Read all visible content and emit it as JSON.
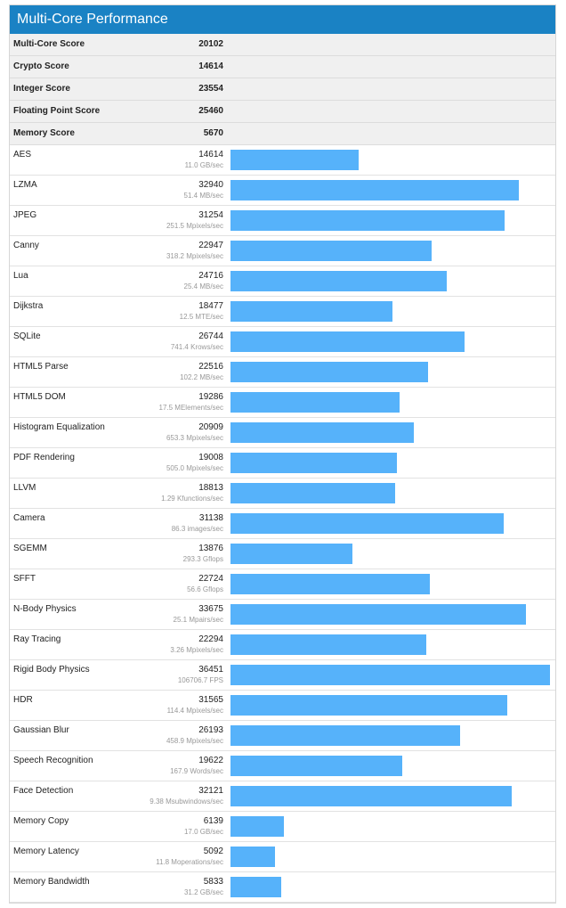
{
  "title": "Multi-Core Performance",
  "summary": [
    {
      "label": "Multi-Core Score",
      "value": "20102"
    },
    {
      "label": "Crypto Score",
      "value": "14614"
    },
    {
      "label": "Integer Score",
      "value": "23554"
    },
    {
      "label": "Floating Point Score",
      "value": "25460"
    },
    {
      "label": "Memory Score",
      "value": "5670"
    }
  ],
  "colors": {
    "header": "#1a82c4",
    "bar": "#56b2fa"
  },
  "chart_data": {
    "type": "bar",
    "orientation": "horizontal",
    "xlim": [
      0,
      36451
    ],
    "categories": [
      "AES",
      "LZMA",
      "JPEG",
      "Canny",
      "Lua",
      "Dijkstra",
      "SQLite",
      "HTML5 Parse",
      "HTML5 DOM",
      "Histogram Equalization",
      "PDF Rendering",
      "LLVM",
      "Camera",
      "SGEMM",
      "SFFT",
      "N-Body Physics",
      "Ray Tracing",
      "Rigid Body Physics",
      "HDR",
      "Gaussian Blur",
      "Speech Recognition",
      "Face Detection",
      "Memory Copy",
      "Memory Latency",
      "Memory Bandwidth"
    ],
    "values": [
      14614,
      32940,
      31254,
      22947,
      24716,
      18477,
      26744,
      22516,
      19286,
      20909,
      19008,
      18813,
      31138,
      13876,
      22724,
      33675,
      22294,
      36451,
      31565,
      26193,
      19622,
      32121,
      6139,
      5092,
      5833
    ],
    "rates": [
      "11.0 GB/sec",
      "51.4 MB/sec",
      "251.5 Mpixels/sec",
      "318.2 Mpixels/sec",
      "25.4 MB/sec",
      "12.5 MTE/sec",
      "741.4 Krows/sec",
      "102.2 MB/sec",
      "17.5 MElements/sec",
      "653.3 Mpixels/sec",
      "505.0 Mpixels/sec",
      "1.29 Kfunctions/sec",
      "86.3 images/sec",
      "293.3 Gflops",
      "56.6 Gflops",
      "25.1 Mpairs/sec",
      "3.26 Mpixels/sec",
      "106706.7 FPS",
      "114.4 Mpixels/sec",
      "458.9 Mpixels/sec",
      "167.9 Words/sec",
      "9.38 Msubwindows/sec",
      "17.0 GB/sec",
      "11.8 Moperations/sec",
      "31.2 GB/sec"
    ]
  }
}
